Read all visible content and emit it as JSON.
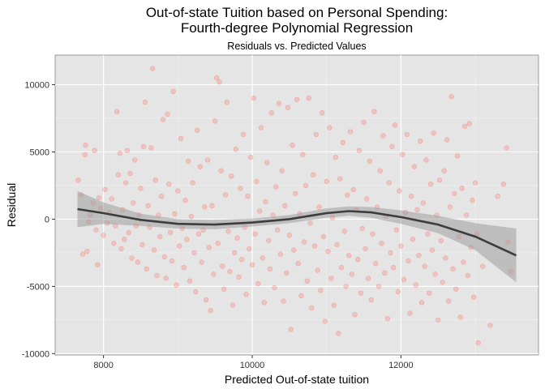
{
  "chart_data": {
    "type": "scatter",
    "title_line1": "Out-of-state Tuition based on Personal Spending:",
    "title_line2": "Fourth-degree Polynomial Regression",
    "subtitle": "Residuals vs. Predicted Values",
    "xlabel": "Predicted Out-of-state tuition",
    "ylabel": "Residual",
    "xlim": [
      7350,
      13850
    ],
    "ylim": [
      -10100,
      12200
    ],
    "x_ticks": [
      8000,
      10000,
      12000
    ],
    "x_tick_labels": [
      "8000",
      "10000",
      "12000"
    ],
    "y_ticks": [
      -10000,
      -5000,
      0,
      5000,
      10000
    ],
    "y_tick_labels": [
      "-10000",
      "-5000",
      "0",
      "5000",
      "10000"
    ],
    "grid": true,
    "point_color": "#f8766d",
    "point_opacity": 0.3,
    "smooth_color": "#3d3d3d",
    "band_color": "#9e9e9e",
    "panel_background": "#e5e5e5",
    "smooth_fit": {
      "x": [
        7650,
        8000,
        8500,
        9000,
        9500,
        10000,
        10500,
        11000,
        11300,
        11600,
        12000,
        12500,
        13000,
        13550
      ],
      "y": [
        750,
        450,
        -50,
        -350,
        -400,
        -250,
        0,
        450,
        600,
        500,
        150,
        -400,
        -1300,
        -2700
      ],
      "lower": [
        -600,
        -350,
        -500,
        -700,
        -750,
        -550,
        -300,
        100,
        250,
        100,
        -350,
        -1050,
        -2300,
        -4700
      ],
      "upper": [
        2100,
        1250,
        400,
        0,
        -50,
        50,
        300,
        800,
        950,
        900,
        650,
        250,
        -300,
        -700
      ]
    },
    "points": [
      [
        7660,
        2900
      ],
      [
        7700,
        1800
      ],
      [
        7720,
        -2600
      ],
      [
        7750,
        4800
      ],
      [
        7760,
        5500
      ],
      [
        7780,
        -2400
      ],
      [
        7800,
        -200
      ],
      [
        7820,
        300
      ],
      [
        7860,
        1200
      ],
      [
        7880,
        5100
      ],
      [
        7900,
        -800
      ],
      [
        7920,
        -3400
      ],
      [
        7940,
        1600
      ],
      [
        7960,
        800
      ],
      [
        8000,
        -1200
      ],
      [
        8020,
        2200
      ],
      [
        8050,
        -300
      ],
      [
        8080,
        500
      ],
      [
        8110,
        1500
      ],
      [
        8140,
        -1800
      ],
      [
        8160,
        -500
      ],
      [
        8180,
        8000
      ],
      [
        8200,
        3300
      ],
      [
        8220,
        4900
      ],
      [
        8240,
        -2200
      ],
      [
        8260,
        700
      ],
      [
        8280,
        -1500
      ],
      [
        8300,
        2700
      ],
      [
        8320,
        5100
      ],
      [
        8340,
        -1000
      ],
      [
        8360,
        3400
      ],
      [
        8380,
        -2900
      ],
      [
        8400,
        1200
      ],
      [
        8420,
        4400
      ],
      [
        8440,
        -500
      ],
      [
        8460,
        -3200
      ],
      [
        8480,
        300
      ],
      [
        8500,
        2300
      ],
      [
        8520,
        -1900
      ],
      [
        8540,
        5400
      ],
      [
        8560,
        8700
      ],
      [
        8580,
        -3700
      ],
      [
        8600,
        1000
      ],
      [
        8620,
        -600
      ],
      [
        8640,
        5300
      ],
      [
        8660,
        11200
      ],
      [
        8680,
        -2300
      ],
      [
        8700,
        2900
      ],
      [
        8720,
        -4200
      ],
      [
        8740,
        300
      ],
      [
        8760,
        -1300
      ],
      [
        8780,
        1700
      ],
      [
        8800,
        7400
      ],
      [
        8820,
        -2800
      ],
      [
        8840,
        -4400
      ],
      [
        8860,
        7800
      ],
      [
        8880,
        2600
      ],
      [
        8900,
        -1000
      ],
      [
        8920,
        -3100
      ],
      [
        8940,
        9500
      ],
      [
        8960,
        400
      ],
      [
        8980,
        -4900
      ],
      [
        9000,
        2100
      ],
      [
        9020,
        -2000
      ],
      [
        9040,
        6000
      ],
      [
        9060,
        -700
      ],
      [
        9080,
        -3600
      ],
      [
        9100,
        1400
      ],
      [
        9120,
        -1500
      ],
      [
        9140,
        4300
      ],
      [
        9160,
        -4600
      ],
      [
        9180,
        200
      ],
      [
        9200,
        2700
      ],
      [
        9220,
        -2500
      ],
      [
        9240,
        -5400
      ],
      [
        9260,
        6600
      ],
      [
        9280,
        -1100
      ],
      [
        9300,
        3900
      ],
      [
        9320,
        -3200
      ],
      [
        9340,
        -800
      ],
      [
        9360,
        900
      ],
      [
        9380,
        -6000
      ],
      [
        9400,
        4400
      ],
      [
        9420,
        -2100
      ],
      [
        9440,
        -6800
      ],
      [
        9460,
        1000
      ],
      [
        9480,
        -4100
      ],
      [
        9500,
        7300
      ],
      [
        9520,
        10500
      ],
      [
        9540,
        -1800
      ],
      [
        9560,
        10200
      ],
      [
        9580,
        3600
      ],
      [
        9600,
        -3500
      ],
      [
        9620,
        -5200
      ],
      [
        9640,
        1800
      ],
      [
        9660,
        8700
      ],
      [
        9680,
        -900
      ],
      [
        9700,
        -3900
      ],
      [
        9720,
        3200
      ],
      [
        9740,
        -6400
      ],
      [
        9760,
        -2500
      ],
      [
        9780,
        5200
      ],
      [
        9800,
        -1400
      ],
      [
        9820,
        -4300
      ],
      [
        9840,
        2300
      ],
      [
        9860,
        -3000
      ],
      [
        9880,
        6300
      ],
      [
        9900,
        -600
      ],
      [
        9920,
        -5600
      ],
      [
        9940,
        1700
      ],
      [
        9960,
        -2200
      ],
      [
        9980,
        4600
      ],
      [
        10000,
        -3400
      ],
      [
        10020,
        9000
      ],
      [
        10040,
        -1100
      ],
      [
        10060,
        2800
      ],
      [
        10080,
        -4800
      ],
      [
        10100,
        600
      ],
      [
        10120,
        6800
      ],
      [
        10140,
        -2900
      ],
      [
        10160,
        -6200
      ],
      [
        10180,
        1300
      ],
      [
        10200,
        4200
      ],
      [
        10220,
        -1600
      ],
      [
        10240,
        -3700
      ],
      [
        10260,
        7900
      ],
      [
        10280,
        300
      ],
      [
        10300,
        -5100
      ],
      [
        10320,
        2400
      ],
      [
        10340,
        -800
      ],
      [
        10360,
        8600
      ],
      [
        10380,
        -2600
      ],
      [
        10400,
        3600
      ],
      [
        10420,
        -6100
      ],
      [
        10440,
        1000
      ],
      [
        10460,
        -4000
      ],
      [
        10480,
        8300
      ],
      [
        10500,
        -1200
      ],
      [
        10520,
        -8200
      ],
      [
        10540,
        5500
      ],
      [
        10560,
        -2300
      ],
      [
        10580,
        1900
      ],
      [
        10600,
        8900
      ],
      [
        10620,
        -3300
      ],
      [
        10640,
        400
      ],
      [
        10660,
        -5700
      ],
      [
        10680,
        4800
      ],
      [
        10700,
        -1700
      ],
      [
        10720,
        2500
      ],
      [
        10740,
        -4600
      ],
      [
        10760,
        9000
      ],
      [
        10780,
        -300
      ],
      [
        10800,
        -6600
      ],
      [
        10820,
        3300
      ],
      [
        10840,
        -2000
      ],
      [
        10860,
        6300
      ],
      [
        10880,
        -3800
      ],
      [
        10900,
        900
      ],
      [
        10920,
        -5300
      ],
      [
        10940,
        7900
      ],
      [
        10960,
        -1300
      ],
      [
        10980,
        -7600
      ],
      [
        11000,
        2800
      ],
      [
        11020,
        -2400
      ],
      [
        11040,
        6800
      ],
      [
        11060,
        -4400
      ],
      [
        11080,
        100
      ],
      [
        11100,
        -6400
      ],
      [
        11120,
        4600
      ],
      [
        11140,
        -1900
      ],
      [
        11160,
        -8500
      ],
      [
        11180,
        3000
      ],
      [
        11200,
        -3600
      ],
      [
        11220,
        5700
      ],
      [
        11240,
        -900
      ],
      [
        11260,
        -5000
      ],
      [
        11280,
        1800
      ],
      [
        11300,
        -2700
      ],
      [
        11320,
        6500
      ],
      [
        11340,
        -4100
      ],
      [
        11360,
        2200
      ],
      [
        11380,
        -7100
      ],
      [
        11400,
        700
      ],
      [
        11420,
        -3000
      ],
      [
        11440,
        5100
      ],
      [
        11460,
        -5500
      ],
      [
        11480,
        -700
      ],
      [
        11500,
        7200
      ],
      [
        11520,
        -2200
      ],
      [
        11540,
        1500
      ],
      [
        11560,
        -4400
      ],
      [
        11580,
        4300
      ],
      [
        11600,
        -6000
      ],
      [
        11620,
        -1100
      ],
      [
        11640,
        8000
      ],
      [
        11660,
        -3300
      ],
      [
        11680,
        900
      ],
      [
        11700,
        -5000
      ],
      [
        11720,
        3600
      ],
      [
        11740,
        -1800
      ],
      [
        11760,
        6200
      ],
      [
        11780,
        -4000
      ],
      [
        11800,
        200
      ],
      [
        11820,
        -7400
      ],
      [
        11840,
        2700
      ],
      [
        11860,
        -2500
      ],
      [
        11880,
        5400
      ],
      [
        11900,
        -3600
      ],
      [
        11920,
        7000
      ],
      [
        11940,
        -800
      ],
      [
        11960,
        -5400
      ],
      [
        11980,
        2100
      ],
      [
        12000,
        -2000
      ],
      [
        12020,
        4800
      ],
      [
        12040,
        -4500
      ],
      [
        12060,
        500
      ],
      [
        12080,
        6300
      ],
      [
        12100,
        -3100
      ],
      [
        12120,
        -7000
      ],
      [
        12140,
        1700
      ],
      [
        12160,
        -1500
      ],
      [
        12180,
        3900
      ],
      [
        12200,
        -4900
      ],
      [
        12220,
        700
      ],
      [
        12240,
        -2700
      ],
      [
        12260,
        5800
      ],
      [
        12280,
        -6200
      ],
      [
        12300,
        1200
      ],
      [
        12320,
        -3500
      ],
      [
        12340,
        4400
      ],
      [
        12360,
        -1100
      ],
      [
        12380,
        -5500
      ],
      [
        12400,
        2600
      ],
      [
        12420,
        -2300
      ],
      [
        12440,
        6400
      ],
      [
        12460,
        -4100
      ],
      [
        12480,
        300
      ],
      [
        12500,
        -7500
      ],
      [
        12520,
        2900
      ],
      [
        12540,
        -1600
      ],
      [
        12560,
        -4700
      ],
      [
        12580,
        3600
      ],
      [
        12600,
        -2900
      ],
      [
        12620,
        5900
      ],
      [
        12640,
        -6100
      ],
      [
        12660,
        900
      ],
      [
        12680,
        9100
      ],
      [
        12700,
        -3700
      ],
      [
        12720,
        1900
      ],
      [
        12740,
        -5200
      ],
      [
        12760,
        4700
      ],
      [
        12780,
        -1300
      ],
      [
        12800,
        -7300
      ],
      [
        12820,
        2300
      ],
      [
        12840,
        -3200
      ],
      [
        12860,
        6900
      ],
      [
        12880,
        300
      ],
      [
        12900,
        -4200
      ],
      [
        12920,
        7100
      ],
      [
        12940,
        -2100
      ],
      [
        12960,
        1400
      ],
      [
        12980,
        -5800
      ],
      [
        13000,
        2700
      ],
      [
        13020,
        -1100
      ],
      [
        13040,
        -9200
      ],
      [
        13100,
        -3500
      ],
      [
        13200,
        -7900
      ],
      [
        13300,
        1700
      ],
      [
        13380,
        2600
      ],
      [
        13420,
        5300
      ],
      [
        13440,
        -1700
      ],
      [
        13480,
        -3900
      ]
    ]
  }
}
